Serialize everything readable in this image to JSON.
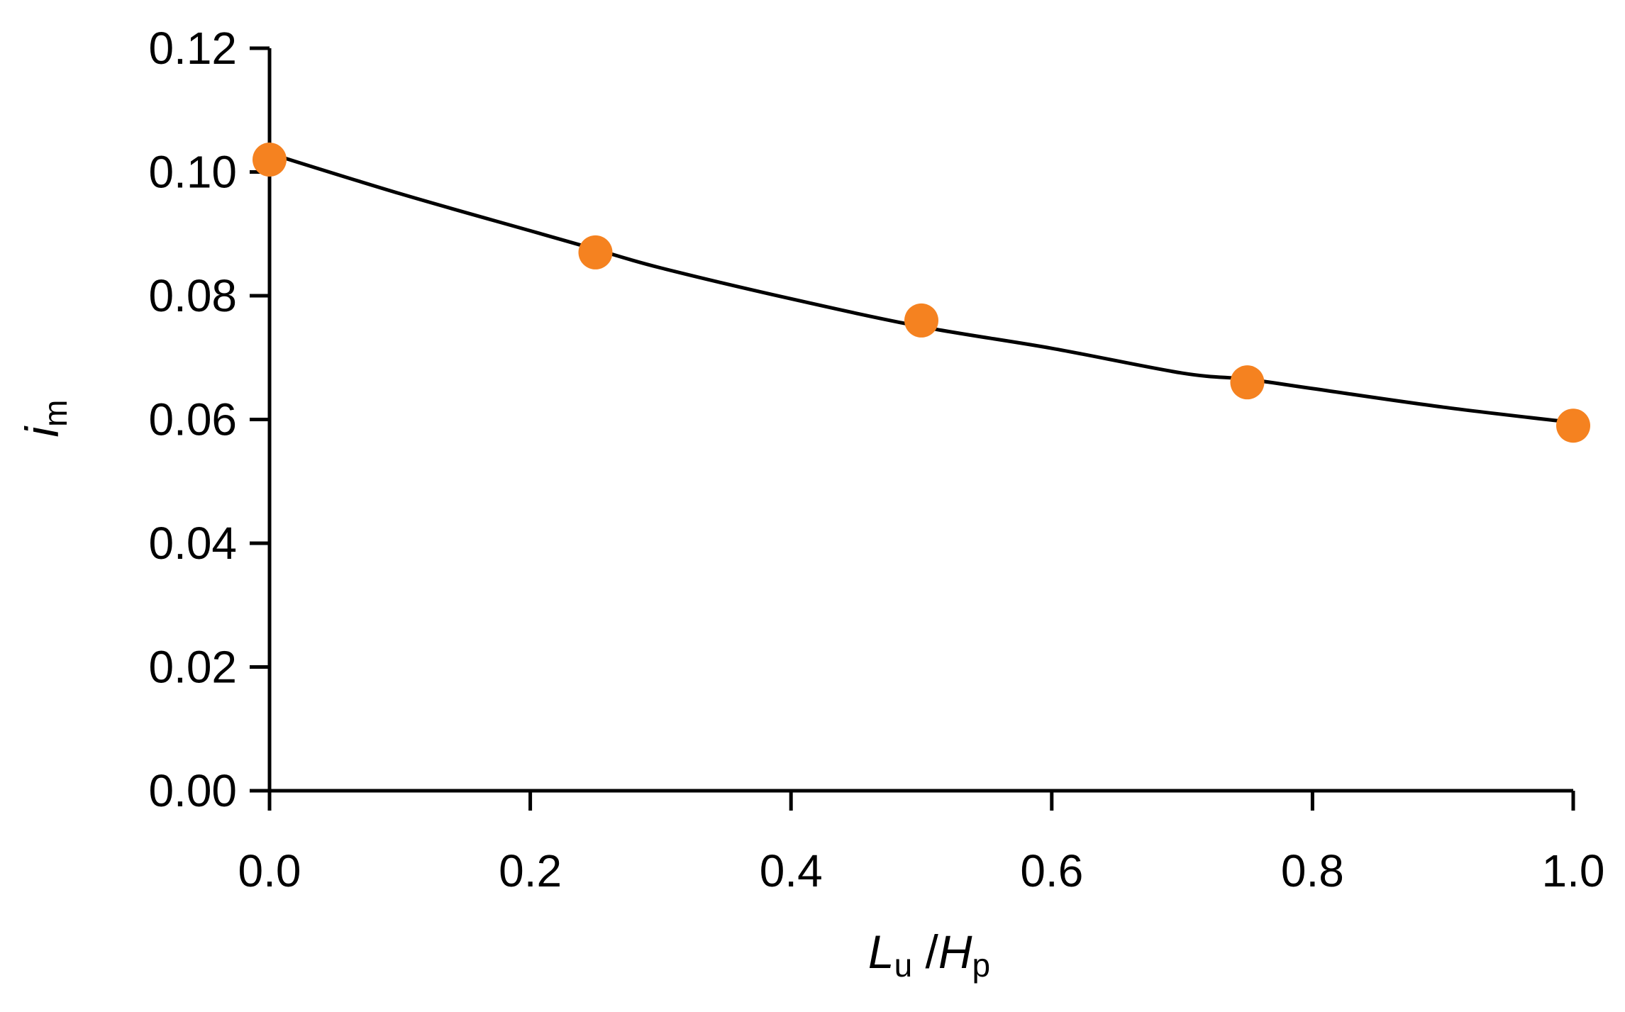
{
  "chart_data": {
    "type": "scatter",
    "title": "",
    "xlabel": {
      "main": "L",
      "sub": "u",
      "sep": " /",
      "main2": "H",
      "sub2": "p"
    },
    "ylabel": {
      "main": "i",
      "sub": "m"
    },
    "xlim": [
      0.0,
      1.0
    ],
    "ylim": [
      0.0,
      0.12
    ],
    "x_ticks": [
      "0.0",
      "0.2",
      "0.4",
      "0.6",
      "0.8",
      "1.0"
    ],
    "y_ticks": [
      "0.00",
      "0.02",
      "0.04",
      "0.06",
      "0.08",
      "0.10",
      "0.12"
    ],
    "grid": false,
    "legend": "none",
    "series": [
      {
        "type": "scatter",
        "x": [
          0.0,
          0.25,
          0.5,
          0.75,
          1.0
        ],
        "y": [
          0.102,
          0.087,
          0.076,
          0.066,
          0.059
        ],
        "color": "#f58220"
      },
      {
        "type": "line",
        "x": [
          0.0,
          0.1,
          0.2,
          0.25,
          0.3,
          0.4,
          0.5,
          0.6,
          0.7,
          0.75,
          0.8,
          0.9,
          1.0
        ],
        "y": [
          0.103,
          0.0965,
          0.0905,
          0.0875,
          0.0845,
          0.0795,
          0.075,
          0.0715,
          0.0675,
          0.0665,
          0.065,
          0.062,
          0.0595
        ],
        "color": "#000000"
      }
    ]
  }
}
